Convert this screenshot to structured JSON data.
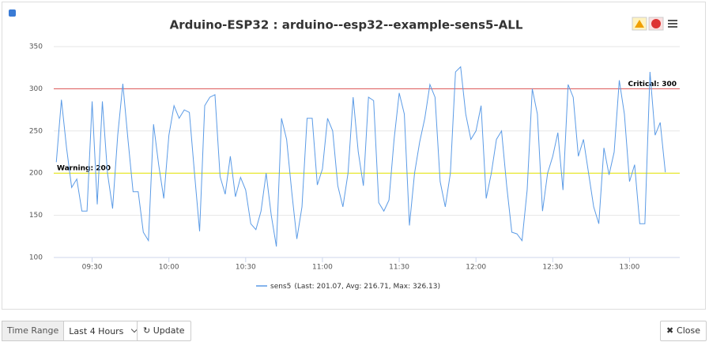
{
  "chart_data": {
    "type": "line",
    "title": "Arduino-ESP32 : arduino--esp32--example-sens5-ALL",
    "x": [
      556,
      558,
      560,
      562,
      564,
      566,
      568,
      570,
      572,
      574,
      576,
      578,
      580,
      582,
      584,
      586,
      588,
      590,
      592,
      594,
      596,
      598,
      600,
      602,
      604,
      606,
      608,
      610,
      612,
      614,
      616,
      618,
      620,
      622,
      624,
      626,
      628,
      630,
      632,
      634,
      636,
      638,
      640,
      642,
      644,
      646,
      648,
      650,
      652,
      654,
      656,
      658,
      660,
      662,
      664,
      666,
      668,
      670,
      672,
      674,
      676,
      678,
      680,
      682,
      684,
      686,
      688,
      690,
      692,
      694,
      696,
      698,
      700,
      702,
      704,
      706,
      708,
      710,
      712,
      714,
      716,
      718,
      720,
      722,
      724,
      726,
      728,
      730,
      732,
      734,
      736,
      738,
      740,
      742,
      744,
      746,
      748,
      750,
      752,
      754,
      756,
      758,
      760,
      762,
      764,
      766,
      768,
      770,
      772,
      774,
      776,
      778,
      780,
      782,
      784,
      786,
      788,
      790,
      792,
      794
    ],
    "series": [
      {
        "name": "sens5",
        "color": "#5b9be6",
        "values": [
          213,
          287,
          230,
          183,
          193,
          155,
          155,
          285,
          163,
          285,
          200,
          158,
          245,
          306,
          240,
          178,
          178,
          130,
          120,
          258,
          210,
          170,
          245,
          280,
          265,
          275,
          272,
          200,
          131,
          280,
          290,
          293,
          196,
          175,
          220,
          172,
          195,
          180,
          140,
          133,
          155,
          200,
          150,
          113,
          265,
          240,
          178,
          122,
          160,
          265,
          265,
          186,
          205,
          265,
          250,
          185,
          160,
          200,
          290,
          225,
          185,
          290,
          286,
          165,
          155,
          168,
          240,
          295,
          270,
          138,
          200,
          237,
          265,
          305,
          290,
          190,
          160,
          200,
          320,
          326,
          270,
          240,
          250,
          280,
          170,
          200,
          240,
          250,
          185,
          130,
          128,
          120,
          180,
          300,
          270,
          155,
          200,
          220,
          248,
          180,
          305,
          290,
          220,
          240,
          200,
          160,
          140,
          230,
          198,
          225,
          310,
          270,
          190,
          210,
          140,
          140,
          320,
          245,
          260,
          201
        ]
      }
    ],
    "legend_stats": "(Last: 201.07, Avg: 216.71, Max: 326.13)",
    "xlim": [
      555,
      795
    ],
    "xticks": [
      {
        "value": 570,
        "label": "09:30"
      },
      {
        "value": 600,
        "label": "10:00"
      },
      {
        "value": 630,
        "label": "10:30"
      },
      {
        "value": 660,
        "label": "11:00"
      },
      {
        "value": 690,
        "label": "11:30"
      },
      {
        "value": 720,
        "label": "12:00"
      },
      {
        "value": 750,
        "label": "12:30"
      },
      {
        "value": 780,
        "label": "13:00"
      }
    ],
    "ylim": [
      100,
      350
    ],
    "yticks": [
      100,
      150,
      200,
      250,
      300,
      350
    ],
    "grid": true,
    "thresholds": [
      {
        "label": "Warning: 200",
        "value": 200,
        "color": "#e6e600"
      },
      {
        "label": "Critical: 300",
        "value": 300,
        "color": "#e05555"
      }
    ]
  },
  "ui": {
    "time_range_label": "Time Range",
    "time_range_value": "Last 4 Hours",
    "update": "Update",
    "close": "Close"
  }
}
